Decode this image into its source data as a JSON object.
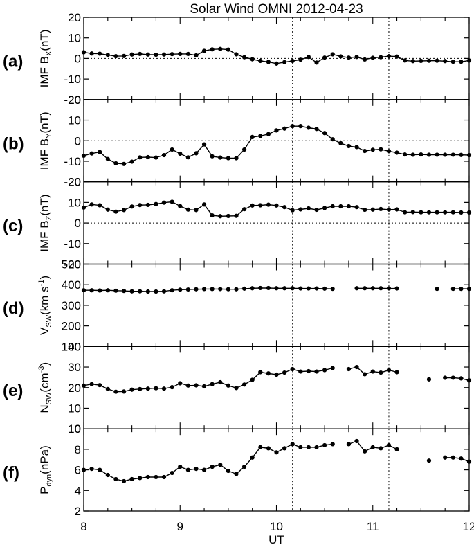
{
  "title": "Solar Wind OMNI 2012-04-23",
  "xlabel": "UT",
  "x_ticks": [
    "8",
    "9",
    "10",
    "11",
    "12"
  ],
  "chart_data": [
    {
      "type": "line",
      "panel": "(a)",
      "ylabel": {
        "pre": "IMF B",
        "sub": "X",
        "post": "(nT)"
      },
      "ylim": [
        -20,
        20
      ],
      "yticks": [
        "20",
        "10",
        "0",
        "-10",
        "-20"
      ],
      "zero_line": true,
      "x": [
        8.0,
        8.0833,
        8.1667,
        8.25,
        8.3333,
        8.4167,
        8.5,
        8.5833,
        8.6667,
        8.75,
        8.8333,
        8.9167,
        9.0,
        9.0833,
        9.1667,
        9.25,
        9.3333,
        9.4167,
        9.5,
        9.5833,
        9.6667,
        9.75,
        9.8333,
        9.9167,
        10.0,
        10.0833,
        10.1667,
        10.25,
        10.3333,
        10.4167,
        10.5,
        10.5833,
        10.6667,
        10.75,
        10.8333,
        10.9167,
        11.0,
        11.0833,
        11.1667,
        11.25,
        11.3333,
        11.4167,
        11.5,
        11.5833,
        11.6667,
        11.75,
        11.8333,
        11.9167,
        12.0
      ],
      "y": [
        3.0,
        2.4,
        2.3,
        1.7,
        1.1,
        1.2,
        1.9,
        2.2,
        1.9,
        1.8,
        1.9,
        2.1,
        2.2,
        2.2,
        1.5,
        3.7,
        4.4,
        4.6,
        4.3,
        2.0,
        0.6,
        -0.4,
        -1.2,
        -1.7,
        -2.5,
        -1.8,
        -1.2,
        -0.6,
        0.7,
        -2.0,
        0.4,
        2.0,
        1.0,
        0.4,
        0.7,
        -0.5,
        0.3,
        0.6,
        1.1,
        0.9,
        -1.0,
        -1.3,
        -1.2,
        -1.1,
        -1.1,
        -1.3,
        -1.6,
        -1.6,
        -1.0
      ]
    },
    {
      "type": "line",
      "panel": "(b)",
      "ylabel": {
        "pre": "IMF B",
        "sub": "Y",
        "post": "(nT)"
      },
      "ylim": [
        -20,
        20
      ],
      "yticks": [
        "20",
        "10",
        "0",
        "-10",
        "-20"
      ],
      "zero_line": true,
      "x": [
        8.0,
        8.0833,
        8.1667,
        8.25,
        8.3333,
        8.4167,
        8.5,
        8.5833,
        8.6667,
        8.75,
        8.8333,
        8.9167,
        9.0,
        9.0833,
        9.1667,
        9.25,
        9.3333,
        9.4167,
        9.5,
        9.5833,
        9.6667,
        9.75,
        9.8333,
        9.9167,
        10.0,
        10.0833,
        10.1667,
        10.25,
        10.3333,
        10.4167,
        10.5,
        10.5833,
        10.6667,
        10.75,
        10.8333,
        10.9167,
        11.0,
        11.0833,
        11.1667,
        11.25,
        11.3333,
        11.4167,
        11.5,
        11.5833,
        11.6667,
        11.75,
        11.8333,
        11.9167,
        12.0
      ],
      "y": [
        -7.3,
        -6.2,
        -5.5,
        -8.9,
        -11.0,
        -11.3,
        -10.2,
        -8.1,
        -8.0,
        -8.2,
        -7.0,
        -4.3,
        -6.3,
        -8.1,
        -6.1,
        -1.8,
        -7.6,
        -8.2,
        -8.5,
        -8.5,
        -4.3,
        1.8,
        2.3,
        3.2,
        5.0,
        5.9,
        7.1,
        7.1,
        6.3,
        5.7,
        3.7,
        0.7,
        -1.2,
        -2.6,
        -3.1,
        -5.0,
        -4.4,
        -4.2,
        -5.1,
        -5.8,
        -6.7,
        -6.8,
        -6.7,
        -6.8,
        -6.8,
        -6.8,
        -6.8,
        -6.9,
        -7.0
      ]
    },
    {
      "type": "line",
      "panel": "(c)",
      "ylabel": {
        "pre": "IMF B",
        "sub": "Z",
        "post": "(nT)"
      },
      "ylim": [
        -20,
        20
      ],
      "yticks": [
        "20",
        "10",
        "0",
        "-10",
        "-20"
      ],
      "zero_line": true,
      "x": [
        8.0,
        8.0833,
        8.1667,
        8.25,
        8.3333,
        8.4167,
        8.5,
        8.5833,
        8.6667,
        8.75,
        8.8333,
        8.9167,
        9.0,
        9.0833,
        9.1667,
        9.25,
        9.3333,
        9.4167,
        9.5,
        9.5833,
        9.6667,
        9.75,
        9.8333,
        9.9167,
        10.0,
        10.0833,
        10.1667,
        10.25,
        10.3333,
        10.4167,
        10.5,
        10.5833,
        10.6667,
        10.75,
        10.8333,
        10.9167,
        11.0,
        11.0833,
        11.1667,
        11.25,
        11.3333,
        11.4167,
        11.5,
        11.5833,
        11.6667,
        11.75,
        11.8333,
        11.9167,
        12.0
      ],
      "y": [
        7.5,
        9.0,
        8.6,
        6.5,
        5.5,
        6.3,
        8.0,
        8.7,
        8.8,
        9.2,
        9.9,
        10.3,
        8.2,
        6.5,
        6.3,
        9.0,
        3.7,
        3.3,
        3.4,
        3.5,
        6.7,
        8.5,
        8.6,
        8.9,
        8.5,
        7.7,
        6.2,
        6.6,
        7.1,
        6.4,
        7.3,
        8.1,
        8.1,
        8.1,
        7.7,
        6.4,
        6.5,
        6.8,
        6.5,
        6.6,
        5.2,
        5.3,
        5.2,
        5.2,
        5.2,
        5.2,
        5.2,
        5.1,
        5.1
      ]
    },
    {
      "type": "line",
      "panel": "(d)",
      "ylabel": {
        "pre": "V",
        "sub": "SW",
        "post": "(km s",
        "sup": "-1",
        "post2": ")"
      },
      "ylim": [
        100,
        500
      ],
      "yticks": [
        "500",
        "400",
        "300",
        "200",
        "100"
      ],
      "zero_line": false,
      "x": [
        8.0,
        8.0833,
        8.1667,
        8.25,
        8.3333,
        8.4167,
        8.5,
        8.5833,
        8.6667,
        8.75,
        8.8333,
        8.9167,
        9.0,
        9.0833,
        9.1667,
        9.25,
        9.3333,
        9.4167,
        9.5,
        9.5833,
        9.6667,
        9.75,
        9.8333,
        9.9167,
        10.0,
        10.0833,
        10.1667,
        10.25,
        10.3333,
        10.4167,
        10.5,
        10.5833,
        10.6667,
        10.75,
        10.8333,
        10.9167,
        11.0,
        11.0833,
        11.1667,
        11.25,
        11.3333,
        11.4167,
        11.5,
        11.5833,
        11.6667,
        11.75,
        11.8333,
        11.9167,
        12.0
      ],
      "y": [
        373,
        373,
        372,
        373,
        371,
        370,
        368,
        368,
        367,
        367,
        368,
        373,
        376,
        377,
        378,
        379,
        379,
        379,
        378,
        378,
        381,
        383,
        384,
        384,
        383,
        383,
        383,
        382,
        382,
        382,
        381,
        380,
        null,
        null,
        383,
        383,
        383,
        383,
        382,
        382,
        null,
        null,
        null,
        null,
        380,
        null,
        380,
        380,
        380
      ]
    },
    {
      "type": "line",
      "panel": "(e)",
      "ylabel": {
        "pre": "N",
        "sub": "SW",
        "post": "(cm",
        "sup": "-3",
        "post2": ")"
      },
      "ylim": [
        0,
        40
      ],
      "yticks": [
        "40",
        "30",
        "20",
        "10",
        "0"
      ],
      "zero_line": false,
      "x": [
        8.0,
        8.0833,
        8.1667,
        8.25,
        8.3333,
        8.4167,
        8.5,
        8.5833,
        8.6667,
        8.75,
        8.8333,
        8.9167,
        9.0,
        9.0833,
        9.1667,
        9.25,
        9.3333,
        9.4167,
        9.5,
        9.5833,
        9.6667,
        9.75,
        9.8333,
        9.9167,
        10.0,
        10.0833,
        10.1667,
        10.25,
        10.3333,
        10.4167,
        10.5,
        10.5833,
        10.6667,
        10.75,
        10.8333,
        10.9167,
        11.0,
        11.0833,
        11.1667,
        11.25,
        11.3333,
        11.4167,
        11.5,
        11.5833,
        11.6667,
        11.75,
        11.8333,
        11.9167,
        12.0
      ],
      "y": [
        21.0,
        21.7,
        21.2,
        19.3,
        18.0,
        18.1,
        19.0,
        19.3,
        19.5,
        19.7,
        19.5,
        20.2,
        22.1,
        21.0,
        21.1,
        20.6,
        21.7,
        22.6,
        21.0,
        19.8,
        21.5,
        23.8,
        27.5,
        26.9,
        26.3,
        27.3,
        29.0,
        27.8,
        28.0,
        27.8,
        28.5,
        29.5,
        null,
        29.0,
        30.0,
        26.5,
        27.8,
        27.3,
        28.5,
        27.5,
        null,
        null,
        null,
        24.0,
        null,
        24.8,
        24.8,
        24.5,
        23.5
      ]
    },
    {
      "type": "line",
      "panel": "(f)",
      "ylabel": {
        "pre": "P",
        "sub": "dyn",
        "post": "(nPa)"
      },
      "ylim": [
        2,
        10
      ],
      "yticks": [
        "10",
        "8",
        "6",
        "4",
        "2"
      ],
      "zero_line": false,
      "x": [
        8.0,
        8.0833,
        8.1667,
        8.25,
        8.3333,
        8.4167,
        8.5,
        8.5833,
        8.6667,
        8.75,
        8.8333,
        8.9167,
        9.0,
        9.0833,
        9.1667,
        9.25,
        9.3333,
        9.4167,
        9.5,
        9.5833,
        9.6667,
        9.75,
        9.8333,
        9.9167,
        10.0,
        10.0833,
        10.1667,
        10.25,
        10.3333,
        10.4167,
        10.5,
        10.5833,
        10.6667,
        10.75,
        10.8333,
        10.9167,
        11.0,
        11.0833,
        11.1667,
        11.25,
        11.3333,
        11.4167,
        11.5,
        11.5833,
        11.6667,
        11.75,
        11.8333,
        11.9167,
        12.0
      ],
      "y": [
        6.0,
        6.1,
        6.0,
        5.5,
        5.1,
        4.9,
        5.1,
        5.2,
        5.3,
        5.3,
        5.3,
        5.7,
        6.3,
        6.0,
        6.1,
        6.0,
        6.3,
        6.5,
        5.9,
        5.6,
        6.3,
        7.2,
        8.2,
        8.1,
        7.7,
        8.1,
        8.5,
        8.2,
        8.2,
        8.2,
        8.4,
        8.5,
        null,
        8.5,
        8.8,
        7.8,
        8.2,
        8.1,
        8.4,
        8.0,
        null,
        null,
        null,
        6.9,
        null,
        7.2,
        7.2,
        7.1,
        6.8
      ]
    }
  ],
  "markers": {
    "vertical_lines_ut": [
      10.1667,
      11.1667
    ]
  }
}
